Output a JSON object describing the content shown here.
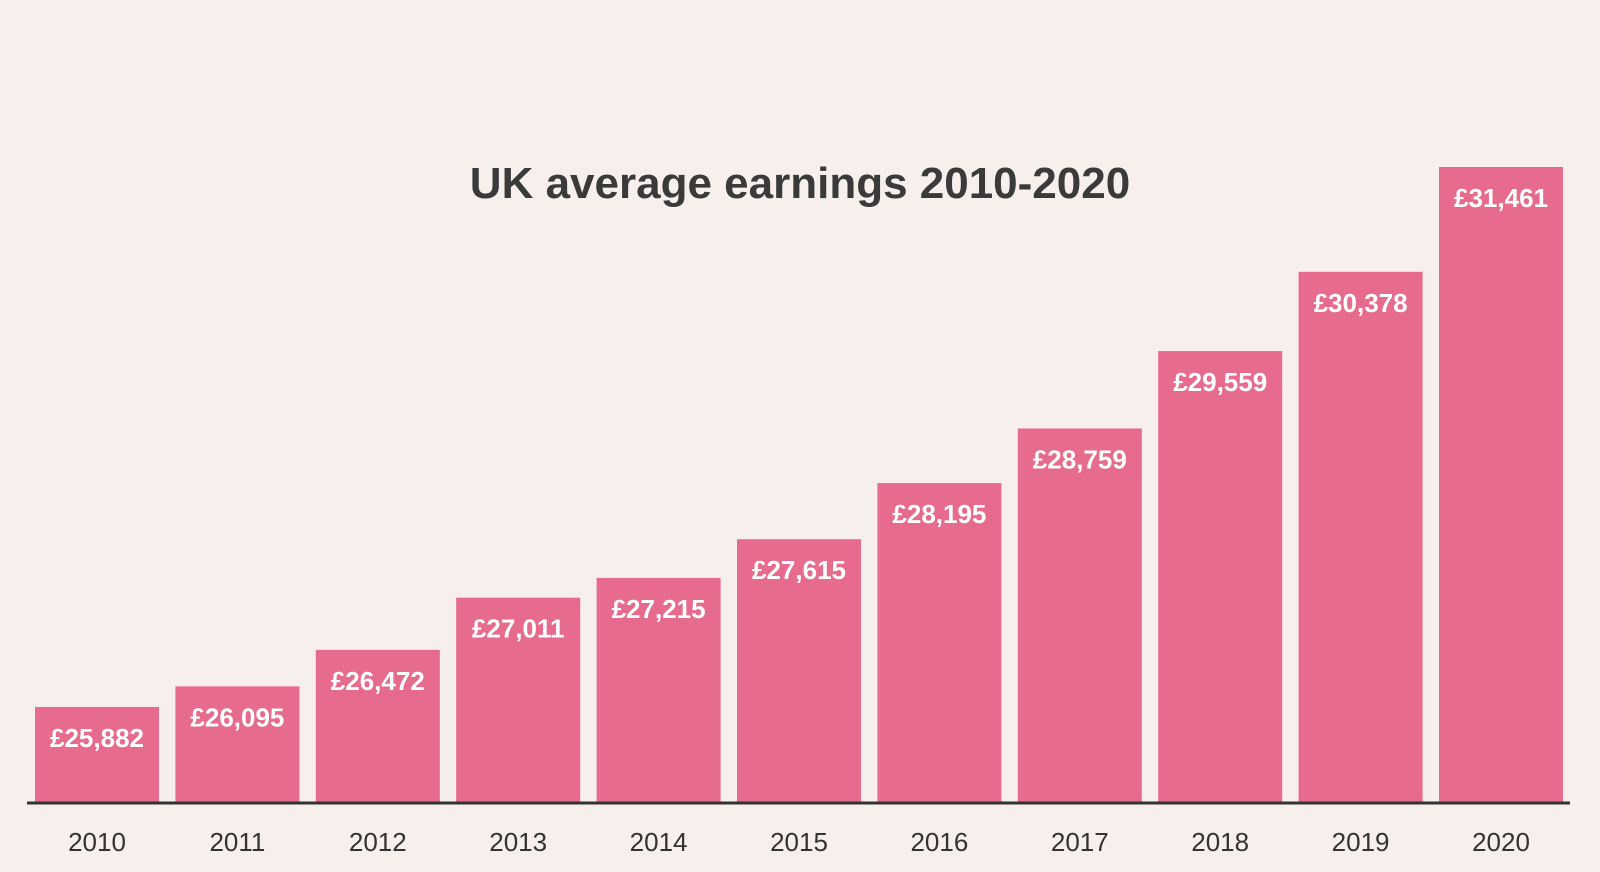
{
  "chart_data": {
    "type": "bar",
    "title": "UK average earnings 2010-2020",
    "xlabel": "",
    "ylabel": "",
    "categories": [
      "2010",
      "2011",
      "2012",
      "2013",
      "2014",
      "2015",
      "2016",
      "2017",
      "2018",
      "2019",
      "2020"
    ],
    "values": [
      25882,
      26095,
      26472,
      27011,
      27215,
      27615,
      28195,
      28759,
      29559,
      30378,
      31461
    ],
    "value_labels": [
      "£25,882",
      "£26,095",
      "£26,472",
      "£27,011",
      "£27,215",
      "£27,615",
      "£28,195",
      "£28,759",
      "£29,559",
      "£30,378",
      "£31,461"
    ],
    "ylim": [
      24900,
      31461
    ],
    "grid": false,
    "legend": "none",
    "colors": {
      "bar": "#e76b8c",
      "background": "#f7efeb",
      "axis": "#333333",
      "title": "#3a3a3a",
      "bar_label": "#ffffff"
    }
  }
}
